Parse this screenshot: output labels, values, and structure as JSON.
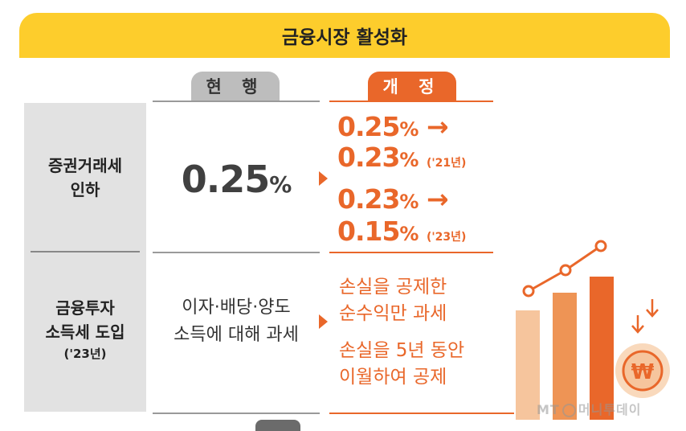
{
  "banner": {
    "title": "금융시장 활성화"
  },
  "headers": {
    "current": "현 행",
    "revised": "개 정"
  },
  "rows": [
    {
      "label_line1": "증권거래세",
      "label_line2": "인하",
      "current": {
        "value": "0.25",
        "unit": "%"
      },
      "revised": [
        {
          "from": "0.25",
          "to": "0.23",
          "unit": "%",
          "arrow": "→",
          "year": "('21년)"
        },
        {
          "from": "0.23",
          "to": "0.15",
          "unit": "%",
          "arrow": "→",
          "year": "('23년)"
        }
      ]
    },
    {
      "label_line1": "금융투자",
      "label_line2": "소득세 도입",
      "label_sub": "('23년)",
      "current_line1": "이자·배당·양도",
      "current_line2": "소득에 대해 과세",
      "revised_lines": [
        "손실을 공제한",
        "순수익만 과세",
        "손실을 5년 동안",
        "이월하여 공제"
      ]
    }
  ],
  "illustration": {
    "coin_symbol": "₩",
    "icon": "bar-chart-coin-icon"
  },
  "watermark": {
    "text_left": "MT",
    "text_right": "머니투데이"
  },
  "colors": {
    "banner": "#FDCD2C",
    "accent": "#E9672A",
    "current_tab": "#BDBDBD",
    "label_bg": "#E2E2E2"
  }
}
